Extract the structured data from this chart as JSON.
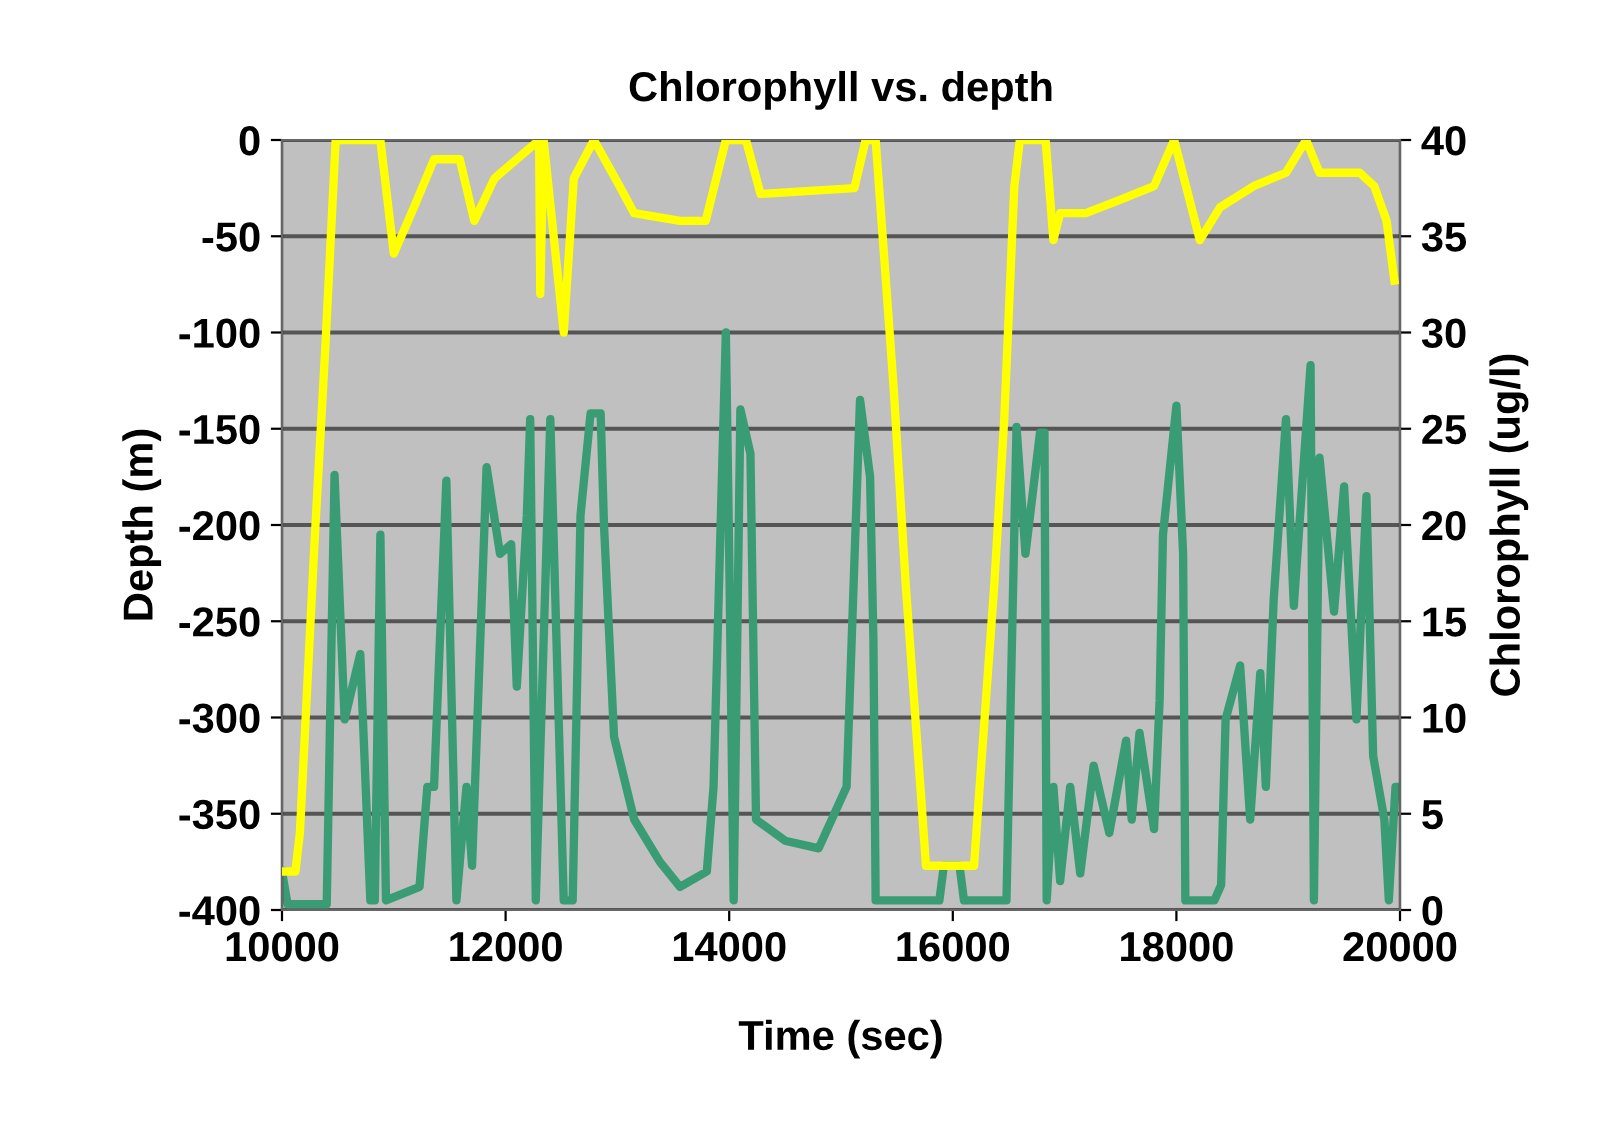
{
  "chart_data": {
    "type": "line",
    "title": "Chlorophyll vs. depth",
    "xlabel": "Time (sec)",
    "ylabel": "Depth (m)",
    "y2label": "Chlorophyll (ug/l)",
    "xlim": [
      10000,
      20000
    ],
    "xticks": [
      10000,
      12000,
      14000,
      16000,
      18000,
      20000
    ],
    "ylim": [
      -400,
      0
    ],
    "yticks": [
      -400,
      -350,
      -300,
      -250,
      -200,
      -150,
      -100,
      -50,
      0
    ],
    "y2lim": [
      0,
      40
    ],
    "y2ticks": [
      0,
      5,
      10,
      15,
      20,
      25,
      30,
      35,
      40
    ],
    "grid": "y",
    "series": [
      {
        "color": "#ffff00",
        "x": [
          10000,
          10120,
          10160,
          10290,
          10390,
          10480,
          10880,
          11000,
          11180,
          11360,
          11590,
          11720,
          11900,
          12300,
          12310,
          12340,
          12520,
          12610,
          12790,
          13020,
          13150,
          13560,
          13790,
          13970,
          14150,
          14280,
          15120,
          15220,
          15310,
          15470,
          15580,
          15710,
          15760,
          16190,
          16240,
          16370,
          16460,
          16550,
          16600,
          16830,
          16900,
          16960,
          17190,
          17500,
          17800,
          17980,
          18210,
          18390,
          18690,
          18980,
          19160,
          19280,
          19640,
          19770,
          19880,
          19950
        ],
        "values": [
          -380,
          -380,
          -360,
          -210,
          -105,
          0,
          0,
          -59,
          -35,
          -10,
          -10,
          -42,
          -20,
          0,
          -80,
          0,
          -100,
          -20,
          0,
          -24,
          -38,
          -42,
          -42,
          0,
          0,
          -28,
          -25,
          0,
          0,
          -128,
          -232,
          -336,
          -377,
          -377,
          -336,
          -232,
          -145,
          -24,
          0,
          0,
          -52,
          -38,
          -38,
          -31,
          -24,
          0,
          -52,
          -35,
          -24,
          -17,
          0,
          -17,
          -17,
          -24,
          -42,
          -73
        ]
      },
      {
        "color": "#3a9c74",
        "axis": "y2",
        "x": [
          10000,
          10050,
          10400,
          10470,
          10560,
          10700,
          10790,
          10830,
          10880,
          10930,
          11230,
          11300,
          11360,
          11470,
          11560,
          11650,
          11700,
          11830,
          11950,
          12050,
          12100,
          12190,
          12220,
          12270,
          12400,
          12520,
          12600,
          12670,
          12760,
          12850,
          12880,
          12970,
          13150,
          13380,
          13560,
          13800,
          13860,
          13970,
          14000,
          14040,
          14100,
          14190,
          14240,
          14500,
          14800,
          15050,
          15170,
          15260,
          15290,
          15310,
          15880,
          15920,
          16060,
          16100,
          16480,
          16570,
          16650,
          16780,
          16820,
          16840,
          16900,
          16960,
          17050,
          17140,
          17260,
          17400,
          17550,
          17600,
          17670,
          17800,
          17850,
          17880,
          18000,
          18060,
          18080,
          18340,
          18400,
          18440,
          18570,
          18660,
          18750,
          18800,
          18870,
          18980,
          19050,
          19200,
          19230,
          19280,
          19410,
          19500,
          19610,
          19700,
          19760,
          19860,
          19900,
          19960,
          20000
        ],
        "values": [
          2,
          0.3,
          0.3,
          22.6,
          9.9,
          13.3,
          0.5,
          0.5,
          19.5,
          0.5,
          1.2,
          6.4,
          6.4,
          22.3,
          0.5,
          6.4,
          2.3,
          23,
          18.5,
          19,
          11.6,
          20.5,
          25.5,
          0.5,
          25.5,
          0.5,
          0.5,
          20.5,
          25.8,
          25.8,
          20,
          9,
          4.7,
          2.5,
          1.2,
          2,
          6.4,
          30,
          18.5,
          0.5,
          26,
          23.7,
          4.7,
          3.6,
          3.2,
          6.4,
          26.5,
          22.5,
          14,
          0.5,
          0.5,
          2.3,
          2.3,
          0.5,
          0.5,
          25.1,
          18.5,
          24.8,
          24.8,
          0.5,
          6.4,
          1.5,
          6.4,
          1.9,
          7.5,
          4,
          8.8,
          4.7,
          9.2,
          4.2,
          10.9,
          19.5,
          26.2,
          18.5,
          0.5,
          0.5,
          1.3,
          9.9,
          12.7,
          4.7,
          12.3,
          6.4,
          16.1,
          25.5,
          15.8,
          28.3,
          0.5,
          23.5,
          15.5,
          22,
          9.9,
          21.5,
          8,
          4.7,
          0.5,
          6.4,
          6.4
        ]
      }
    ]
  }
}
